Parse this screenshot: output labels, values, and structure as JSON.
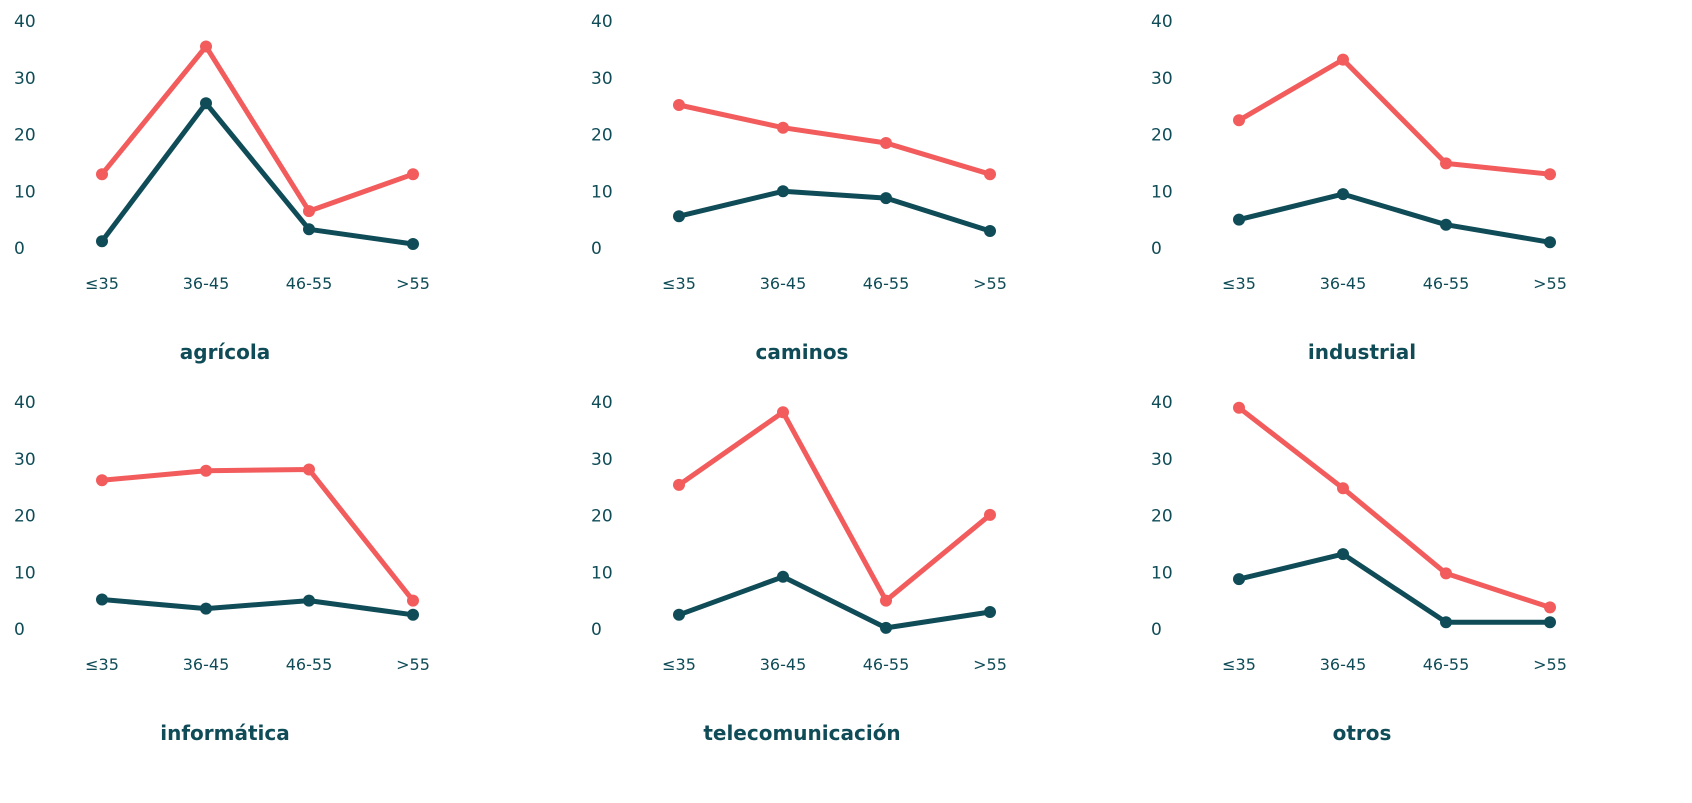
{
  "colors": {
    "series_red": "#f25c5c",
    "series_dark": "#0f4c57",
    "text": "#0f4c57"
  },
  "chart_data": [
    {
      "type": "line",
      "title": "agrícola",
      "categories": [
        "≤35",
        "36-45",
        "46-55",
        ">55"
      ],
      "yticks": [
        "0",
        "10",
        "20",
        "30",
        "40"
      ],
      "ylim": [
        0,
        40
      ],
      "series": [
        {
          "values": [
            13,
            35.5,
            6.5,
            13
          ]
        },
        {
          "values": [
            1.2,
            25.5,
            3.3,
            0.7
          ]
        }
      ]
    },
    {
      "type": "line",
      "title": "caminos",
      "categories": [
        "≤35",
        "36-45",
        "46-55",
        ">55"
      ],
      "yticks": [
        "0",
        "10",
        "20",
        "30",
        "40"
      ],
      "ylim": [
        0,
        40
      ],
      "series": [
        {
          "values": [
            25.2,
            21.2,
            18.5,
            13
          ]
        },
        {
          "values": [
            5.6,
            10,
            8.8,
            3
          ]
        }
      ]
    },
    {
      "type": "line",
      "title": "industrial",
      "categories": [
        "≤35",
        "36-45",
        "46-55",
        ">55"
      ],
      "yticks": [
        "0",
        "10",
        "20",
        "30",
        "40"
      ],
      "ylim": [
        0,
        40
      ],
      "series": [
        {
          "values": [
            22.5,
            33.2,
            14.9,
            13
          ]
        },
        {
          "values": [
            5,
            9.5,
            4.1,
            1
          ]
        }
      ]
    },
    {
      "type": "line",
      "title": "informática",
      "categories": [
        "≤35",
        "36-45",
        "46-55",
        ">55"
      ],
      "yticks": [
        "0",
        "10",
        "20",
        "30",
        "40"
      ],
      "ylim": [
        0,
        40
      ],
      "series": [
        {
          "values": [
            26.2,
            27.9,
            28.1,
            5
          ]
        },
        {
          "values": [
            5.2,
            3.6,
            5,
            2.5
          ]
        }
      ]
    },
    {
      "type": "line",
      "title": "telecomunicación",
      "categories": [
        "≤35",
        "36-45",
        "46-55",
        ">55"
      ],
      "yticks": [
        "0",
        "10",
        "20",
        "30",
        "40"
      ],
      "ylim": [
        0,
        40
      ],
      "series": [
        {
          "values": [
            25.4,
            38.2,
            5,
            20.1
          ]
        },
        {
          "values": [
            2.5,
            9.2,
            0.2,
            3
          ]
        }
      ]
    },
    {
      "type": "line",
      "title": "otros",
      "categories": [
        "≤35",
        "36-45",
        "46-55",
        ">55"
      ],
      "yticks": [
        "0",
        "10",
        "20",
        "30",
        "40"
      ],
      "ylim": [
        0,
        40
      ],
      "series": [
        {
          "values": [
            39,
            24.8,
            9.8,
            3.8
          ]
        },
        {
          "values": [
            8.8,
            13.2,
            1.2,
            1.2
          ]
        }
      ]
    }
  ]
}
